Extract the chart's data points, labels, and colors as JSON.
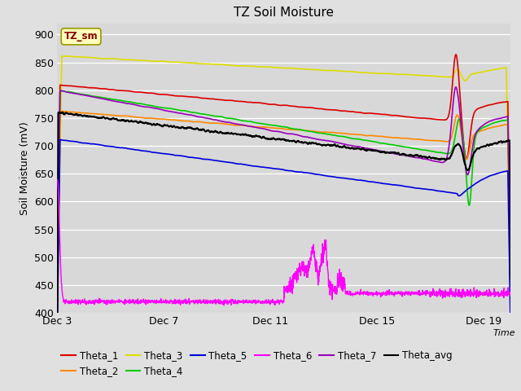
{
  "title": "TZ Soil Moisture",
  "ylabel": "Soil Moisture (mV)",
  "xlabel_text": "Time",
  "annotation_label": "TZ_sm",
  "xlim": [
    0,
    17
  ],
  "ylim": [
    400,
    920
  ],
  "yticks": [
    400,
    450,
    500,
    550,
    600,
    650,
    700,
    750,
    800,
    850,
    900
  ],
  "xtick_positions": [
    0,
    4,
    8,
    12,
    16
  ],
  "xtick_labels": [
    "Dec 3",
    "Dec 7",
    "Dec 11",
    "Dec 15",
    "Dec 19"
  ],
  "fig_bg": "#e0e0e0",
  "plot_bg": "#d8d8d8",
  "colors": {
    "Theta_1": "#dd0000",
    "Theta_2": "#ff8800",
    "Theta_3": "#dddd00",
    "Theta_4": "#00cc00",
    "Theta_5": "#0000dd",
    "Theta_6": "#ff00ff",
    "Theta_7": "#9900bb",
    "Theta_avg": "#000000"
  },
  "event_day": 15.0,
  "N": 2000
}
